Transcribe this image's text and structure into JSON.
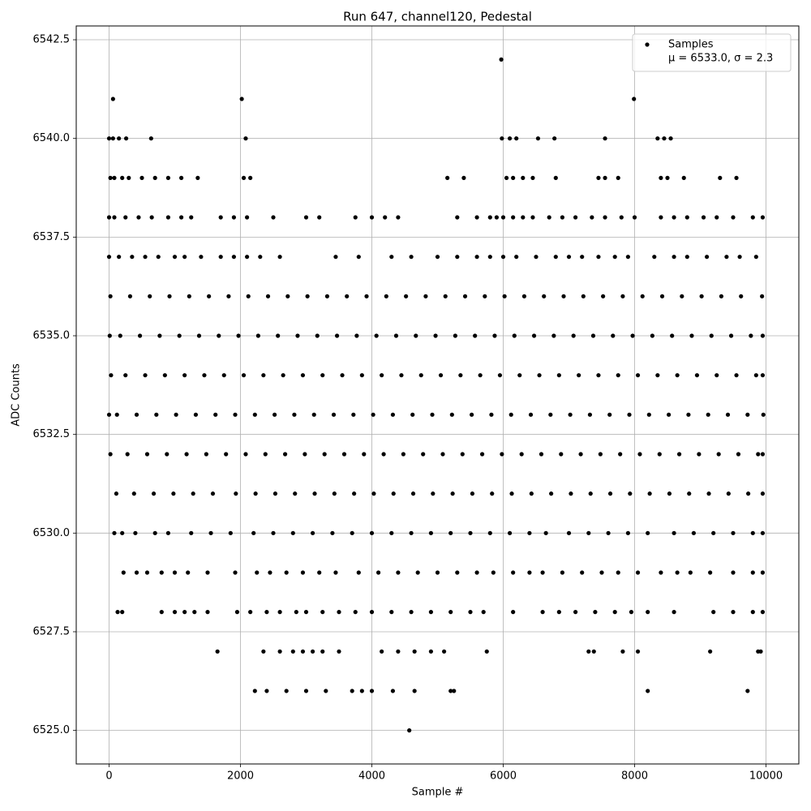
{
  "chart_data": {
    "type": "scatter",
    "title": "Run 647, channel120, Pedestal",
    "x_label": "Sample #",
    "y_label": "ADC Counts",
    "legend": "upper right",
    "legend_note": "μ = 6533.0, σ = 2.3",
    "grid": true,
    "xlim": [
      -500,
      10500
    ],
    "ylim": [
      6524.15,
      6542.85
    ],
    "xticks": [
      0,
      2000,
      4000,
      6000,
      8000,
      10000
    ],
    "yticks": [
      {
        "value": 6525,
        "label": "6525.0"
      },
      {
        "value": 6527.5,
        "label": "6527.5"
      },
      {
        "value": 6530,
        "label": "6530.0"
      },
      {
        "value": 6532.5,
        "label": "6532.5"
      },
      {
        "value": 6535,
        "label": "6535.0"
      },
      {
        "value": 6537.5,
        "label": "6537.5"
      },
      {
        "value": 6540,
        "label": "6540.0"
      },
      {
        "value": 6542.5,
        "label": "6542.5"
      }
    ],
    "series": [
      {
        "name": "Samples",
        "color": "#000000",
        "x": [
          20,
          320,
          620,
          920,
          1220,
          1520,
          1820,
          2120,
          2420,
          2720,
          3020,
          3320,
          3620,
          3920,
          4220,
          4520,
          4820,
          5120,
          5420,
          5720,
          6020,
          6320,
          6620,
          6920,
          7220,
          7520,
          7820,
          8120,
          8420,
          8720,
          9020,
          9320,
          9620,
          9940,
          10,
          170,
          470,
          770,
          1070,
          1370,
          1670,
          1970,
          2270,
          2570,
          2870,
          3170,
          3470,
          3770,
          4070,
          4370,
          4670,
          4970,
          5270,
          5570,
          5870,
          6170,
          6470,
          6770,
          7070,
          7370,
          7670,
          7970,
          8270,
          8570,
          8870,
          9170,
          9470,
          9770,
          9950,
          30,
          250,
          550,
          850,
          1150,
          1450,
          1750,
          2050,
          2350,
          2650,
          2950,
          3250,
          3550,
          3850,
          4150,
          4450,
          4750,
          5050,
          5350,
          5650,
          5950,
          6250,
          6550,
          6850,
          7150,
          7450,
          7750,
          8050,
          8350,
          8650,
          8950,
          9250,
          9550,
          9850,
          9950,
          0,
          120,
          420,
          720,
          1020,
          1320,
          1620,
          1920,
          2220,
          2520,
          2820,
          3120,
          3420,
          3720,
          4020,
          4320,
          4620,
          4920,
          5220,
          5520,
          5820,
          6120,
          6420,
          6720,
          7020,
          7320,
          7620,
          7920,
          8220,
          8520,
          8820,
          9120,
          9420,
          9720,
          9960,
          20,
          280,
          580,
          880,
          1180,
          1480,
          1780,
          2080,
          2380,
          2680,
          2980,
          3280,
          3580,
          3880,
          4180,
          4480,
          4780,
          5080,
          5380,
          5680,
          5980,
          6280,
          6580,
          6880,
          7180,
          7480,
          7780,
          8080,
          8380,
          8680,
          8980,
          9280,
          9580,
          9880,
          9950,
          110,
          380,
          680,
          980,
          1280,
          1580,
          1930,
          2230,
          2530,
          2830,
          3130,
          3430,
          3730,
          4030,
          4330,
          4630,
          4930,
          5230,
          5530,
          5830,
          6130,
          6430,
          6730,
          7030,
          7330,
          7630,
          7930,
          8230,
          8530,
          8830,
          9130,
          9430,
          9730,
          9950,
          0,
          150,
          350,
          550,
          750,
          1000,
          1150,
          1400,
          1700,
          1900,
          2100,
          2300,
          2600,
          3450,
          3800,
          4300,
          4600,
          5000,
          5300,
          5600,
          5800,
          6000,
          6200,
          6500,
          6800,
          7000,
          7200,
          7450,
          7700,
          7900,
          8300,
          8600,
          8800,
          9100,
          9400,
          9600,
          9850,
          80,
          200,
          400,
          700,
          900,
          1250,
          1550,
          1850,
          2200,
          2500,
          2800,
          3100,
          3400,
          3700,
          4000,
          4300,
          4600,
          4900,
          5200,
          5500,
          5800,
          6100,
          6400,
          6650,
          7000,
          7300,
          7600,
          7900,
          8200,
          8600,
          8900,
          9200,
          9500,
          9800,
          9950,
          220,
          420,
          580,
          800,
          1000,
          1200,
          1500,
          1920,
          2250,
          2450,
          2700,
          2950,
          3200,
          3450,
          3800,
          4100,
          4400,
          4700,
          5000,
          5300,
          5600,
          5850,
          6150,
          6400,
          6600,
          6900,
          7200,
          7500,
          7750,
          8050,
          8400,
          8650,
          8850,
          9150,
          9500,
          9800,
          9950,
          130,
          200,
          800,
          1000,
          1150,
          1300,
          1500,
          1950,
          2150,
          2400,
          2600,
          2850,
          3000,
          3250,
          3500,
          3750,
          4000,
          4300,
          4600,
          4900,
          5200,
          5500,
          5700,
          6150,
          6600,
          6850,
          7100,
          7400,
          7700,
          7950,
          8200,
          8600,
          9200,
          9500,
          9800,
          9950,
          0,
          80,
          250,
          450,
          650,
          900,
          1100,
          1250,
          1700,
          1900,
          2100,
          2500,
          3000,
          3200,
          3750,
          4000,
          4200,
          4400,
          5300,
          5600,
          5800,
          5900,
          6000,
          6150,
          6300,
          6450,
          6700,
          6900,
          7100,
          7350,
          7550,
          7800,
          8000,
          8400,
          8600,
          8800,
          9050,
          9250,
          9500,
          9800,
          9950,
          20,
          80,
          200,
          300,
          500,
          700,
          900,
          1100,
          1350,
          2050,
          2150,
          5150,
          5400,
          6050,
          6150,
          6300,
          6450,
          6800,
          7450,
          7550,
          7750,
          8400,
          8500,
          8750,
          9300,
          9550,
          0,
          60,
          150,
          260,
          640,
          2080,
          5980,
          6100,
          6200,
          6530,
          6780,
          7550,
          8350,
          8450,
          8550,
          60,
          2020,
          7990,
          5970,
          1650,
          2350,
          2600,
          2800,
          2950,
          3100,
          3250,
          3500,
          4150,
          4400,
          4650,
          4900,
          5100,
          5750,
          7300,
          7380,
          7820,
          8050,
          9150,
          9880,
          9920,
          2220,
          2400,
          2700,
          3000,
          3300,
          3700,
          3850,
          4000,
          4320,
          4650,
          5200,
          5250,
          8200,
          9720,
          4570
        ],
        "values": [
          6536,
          6536,
          6536,
          6536,
          6536,
          6536,
          6536,
          6536,
          6536,
          6536,
          6536,
          6536,
          6536,
          6536,
          6536,
          6536,
          6536,
          6536,
          6536,
          6536,
          6536,
          6536,
          6536,
          6536,
          6536,
          6536,
          6536,
          6536,
          6536,
          6536,
          6536,
          6536,
          6536,
          6536,
          6535,
          6535,
          6535,
          6535,
          6535,
          6535,
          6535,
          6535,
          6535,
          6535,
          6535,
          6535,
          6535,
          6535,
          6535,
          6535,
          6535,
          6535,
          6535,
          6535,
          6535,
          6535,
          6535,
          6535,
          6535,
          6535,
          6535,
          6535,
          6535,
          6535,
          6535,
          6535,
          6535,
          6535,
          6535,
          6534,
          6534,
          6534,
          6534,
          6534,
          6534,
          6534,
          6534,
          6534,
          6534,
          6534,
          6534,
          6534,
          6534,
          6534,
          6534,
          6534,
          6534,
          6534,
          6534,
          6534,
          6534,
          6534,
          6534,
          6534,
          6534,
          6534,
          6534,
          6534,
          6534,
          6534,
          6534,
          6534,
          6534,
          6534,
          6533,
          6533,
          6533,
          6533,
          6533,
          6533,
          6533,
          6533,
          6533,
          6533,
          6533,
          6533,
          6533,
          6533,
          6533,
          6533,
          6533,
          6533,
          6533,
          6533,
          6533,
          6533,
          6533,
          6533,
          6533,
          6533,
          6533,
          6533,
          6533,
          6533,
          6533,
          6533,
          6533,
          6533,
          6533,
          6532,
          6532,
          6532,
          6532,
          6532,
          6532,
          6532,
          6532,
          6532,
          6532,
          6532,
          6532,
          6532,
          6532,
          6532,
          6532,
          6532,
          6532,
          6532,
          6532,
          6532,
          6532,
          6532,
          6532,
          6532,
          6532,
          6532,
          6532,
          6532,
          6532,
          6532,
          6532,
          6532,
          6532,
          6532,
          6531,
          6531,
          6531,
          6531,
          6531,
          6531,
          6531,
          6531,
          6531,
          6531,
          6531,
          6531,
          6531,
          6531,
          6531,
          6531,
          6531,
          6531,
          6531,
          6531,
          6531,
          6531,
          6531,
          6531,
          6531,
          6531,
          6531,
          6531,
          6531,
          6531,
          6531,
          6531,
          6531,
          6531,
          6537,
          6537,
          6537,
          6537,
          6537,
          6537,
          6537,
          6537,
          6537,
          6537,
          6537,
          6537,
          6537,
          6537,
          6537,
          6537,
          6537,
          6537,
          6537,
          6537,
          6537,
          6537,
          6537,
          6537,
          6537,
          6537,
          6537,
          6537,
          6537,
          6537,
          6537,
          6537,
          6537,
          6537,
          6537,
          6537,
          6537,
          6530,
          6530,
          6530,
          6530,
          6530,
          6530,
          6530,
          6530,
          6530,
          6530,
          6530,
          6530,
          6530,
          6530,
          6530,
          6530,
          6530,
          6530,
          6530,
          6530,
          6530,
          6530,
          6530,
          6530,
          6530,
          6530,
          6530,
          6530,
          6530,
          6530,
          6530,
          6530,
          6530,
          6530,
          6530,
          6529,
          6529,
          6529,
          6529,
          6529,
          6529,
          6529,
          6529,
          6529,
          6529,
          6529,
          6529,
          6529,
          6529,
          6529,
          6529,
          6529,
          6529,
          6529,
          6529,
          6529,
          6529,
          6529,
          6529,
          6529,
          6529,
          6529,
          6529,
          6529,
          6529,
          6529,
          6529,
          6529,
          6529,
          6529,
          6529,
          6529,
          6528,
          6528,
          6528,
          6528,
          6528,
          6528,
          6528,
          6528,
          6528,
          6528,
          6528,
          6528,
          6528,
          6528,
          6528,
          6528,
          6528,
          6528,
          6528,
          6528,
          6528,
          6528,
          6528,
          6528,
          6528,
          6528,
          6528,
          6528,
          6528,
          6528,
          6528,
          6528,
          6528,
          6528,
          6528,
          6528,
          6538,
          6538,
          6538,
          6538,
          6538,
          6538,
          6538,
          6538,
          6538,
          6538,
          6538,
          6538,
          6538,
          6538,
          6538,
          6538,
          6538,
          6538,
          6538,
          6538,
          6538,
          6538,
          6538,
          6538,
          6538,
          6538,
          6538,
          6538,
          6538,
          6538,
          6538,
          6538,
          6538,
          6538,
          6538,
          6538,
          6538,
          6538,
          6538,
          6538,
          6538,
          6539,
          6539,
          6539,
          6539,
          6539,
          6539,
          6539,
          6539,
          6539,
          6539,
          6539,
          6539,
          6539,
          6539,
          6539,
          6539,
          6539,
          6539,
          6539,
          6539,
          6539,
          6539,
          6539,
          6539,
          6539,
          6539,
          6540,
          6540,
          6540,
          6540,
          6540,
          6540,
          6540,
          6540,
          6540,
          6540,
          6540,
          6540,
          6540,
          6540,
          6540,
          6541,
          6541,
          6541,
          6542,
          6527,
          6527,
          6527,
          6527,
          6527,
          6527,
          6527,
          6527,
          6527,
          6527,
          6527,
          6527,
          6527,
          6527,
          6527,
          6527,
          6527,
          6527,
          6527,
          6527,
          6527,
          6526,
          6526,
          6526,
          6526,
          6526,
          6526,
          6526,
          6526,
          6526,
          6526,
          6526,
          6526,
          6526,
          6526,
          6525
        ]
      }
    ]
  }
}
